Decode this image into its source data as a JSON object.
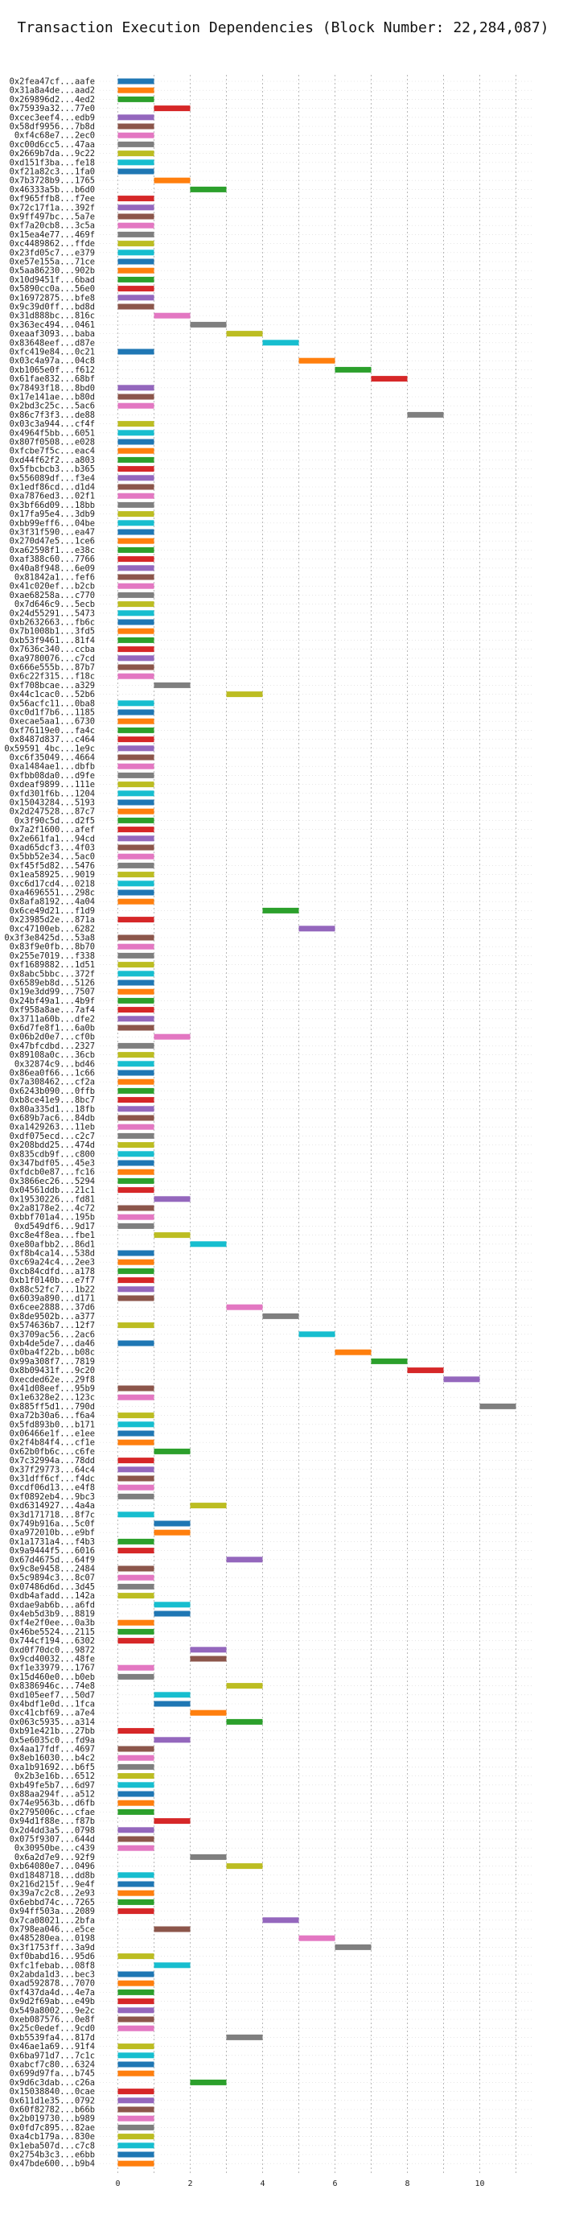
{
  "chart_data": {
    "type": "bar",
    "title": "Transaction Execution Dependencies (Block Number: 22,284,087)",
    "xlabel": "",
    "ylabel": "",
    "xlim": [
      -0.5,
      11.5
    ],
    "xticks": [
      0,
      2,
      4,
      6,
      8,
      10
    ],
    "grid": true,
    "colors": [
      "#1f77b4",
      "#ff7f0e",
      "#2ca02c",
      "#d62728",
      "#9467bd",
      "#8c564b",
      "#e377c2",
      "#7f7f7f",
      "#bcbd22",
      "#17becf"
    ],
    "transactions": [
      "0x2fea47cf...aafe",
      "0x31a8a4de...aad2",
      "0x269896d2...4ed2",
      "0x75939a32...77e0",
      "0xcec3eef4...edb9",
      "0x58df9956...7b8d",
      "0xf4c68e7...2ec0",
      "0xc00d6cc5...47aa",
      "0x2669b7da...9c22",
      "0xd151f3ba...fe18",
      "0xf21a82c3...1fa0",
      "0x7b3728b9...1765",
      "0x46333a5b...b6d0",
      "0xf965ffb8...f7ee",
      "0x72c17f1a...392f",
      "0x9ff497bc...5a7e",
      "0xf7a20cb8...3c5a",
      "0x15ea4e77...469f",
      "0xc4489862...ffde",
      "0x23fd05c7...e379",
      "0xe57e155a...71ce",
      "0x5aa86230...902b",
      "0x10d9451f...6bad",
      "0x5890cc0a...56e0",
      "0x16972875...bfe8",
      "0x9c39d0ff...bd8d",
      "0x31d888bc...816c",
      "0x363ec494...0461",
      "0xeaaf3093...baba",
      "0x83648eef...d87e",
      "0xfc419e84...0c21",
      "0x03c4a97a...04c8",
      "0xb1065e0f...f612",
      "0x61fae832...68bf",
      "0x78493f18...8bd0",
      "0x17e141ae...b80d",
      "0x2bd3c25c...5ac6",
      "0x86c7f3f3...de88",
      "0x03c3a944...cf4f",
      "0x4964f5bb...6051",
      "0x807f0508...e028",
      "0xfcbe7f5c...eac4",
      "0xd44f62f2...a803",
      "0x5fbcbcb3...b365",
      "0x556089df...f3e4",
      "0x1edf86cd...d1d4",
      "0xa7876ed3...02f1",
      "0x3bf66d09...18bb",
      "0x17fa95e4...3db9",
      "0xbb99eff6...04be",
      "0x3f31f590...ea47",
      "0x270d47e5...1ce6",
      "0xa62598f1...e38c",
      "0xaf388c60...7766",
      "0x40a8f948...6e09",
      "0x81842a1...fef6",
      "0x41c020ef...b2cb",
      "0xae68258a...c770",
      "0x7d646c9...5ecb",
      "0x24d55291...5473",
      "0xb2632663...fb6c",
      "0x7b1008b1...3fd5",
      "0xb53f9461...81f4",
      "0x7636c340...ccba",
      "0xa9780076...c7cd",
      "0x666e555b...87b7",
      "0x6c22f315...f18c",
      "0xf708bcae...a329",
      "0x44c1cac0...52b6",
      "0x56acfc11...0ba8",
      "0xc0d1f7b6...1185",
      "0xecae5aa1...6730",
      "0xf76119e0...fa4c",
      "0x8487d837...c464",
      "0x59591 4bc...1e9c",
      "0xc6f35049...4664",
      "0xa1484ae1...dbfb",
      "0xfbb08da0...d9fe",
      "0xdeaf9899...111e",
      "0xfd301f6b...1204",
      "0x15043284...5193",
      "0x2d247528...87c7",
      "0x3f90c5d...d2f5",
      "0x7a2f1600...afef",
      "0x2e661fa1...94cd",
      "0xad65dcf3...4f03",
      "0x5bb52e34...5ac0",
      "0xf45f5d82...5476",
      "0x1ea58925...9019",
      "0xc6d17cd4...0218",
      "0xa4696551...298c",
      "0x8afa8192...4a04",
      "0x6ce49d21...f1d9",
      "0x23985d2e...871a",
      "0xc47100eb...6282",
      "0x3f3e8425d...53a8",
      "0x83f9e0fb...8b70",
      "0x255e7019...f338",
      "0xf1689882...1d51",
      "0x8abc5bbc...372f",
      "0x6589eb8d...5126",
      "0x19e3dd99...7507",
      "0x24bf49a1...4b9f",
      "0xf958a8ae...7af4",
      "0x3711a60b...dfe2",
      "0x6d7fe8f1...6a0b",
      "0x06b2d0e7...cf0b",
      "0x47bfcdbd...2327",
      "0x89108a0c...36cb",
      "0x32874c9...bd46",
      "0x86ea0f66...1c66",
      "0x7a308462...cf2a",
      "0x6243b090...0ffb",
      "0xb8ce41e9...8bc7",
      "0x80a335d1...18fb",
      "0x689b7ac6...84db",
      "0xa1429263...11eb",
      "0xdf075ecd...c2c7",
      "0x208bdd25...474d",
      "0x835cdb9f...c800",
      "0x347bdf05...45e3",
      "0xfdcb0e87...fc16",
      "0x3866ec26...5294",
      "0x04561ddb...21c1",
      "0x19530226...fd81",
      "0x2a8178e2...4c72",
      "0xbbf701a4...195b",
      "0xd549df6...9d17",
      "0xc8e4f8ea...fbe1",
      "0xe80afbb2...86d1",
      "0xf8b4ca14...538d",
      "0xc69a24c4...2ee3",
      "0xcb84cdfd...a178",
      "0xb1f0140b...e7f7",
      "0x88c52fc7...1b22",
      "0x6039a890...d171",
      "0x6cee2888...37d6",
      "0x8de9502b...a377",
      "0x574636b7...12f7",
      "0x3709ac56...2ac6",
      "0xb4de5de7...da46",
      "0x0ba4f22b...b08c",
      "0x99a308f7...7819",
      "0x8b09431f...9c20",
      "0xecded62e...29f8",
      "0x41d08eef...95b9",
      "0x1e6328e2...123c",
      "0x885ff5d1...790d",
      "0xa72b30a6...f6a4",
      "0x5fd893b0...b171",
      "0x06466e1f...e1ee",
      "0x2f4b84f4...cf1e",
      "0x62b0fb6c...c6fe",
      "0x7c32994a...78dd",
      "0x37f29773...64c4",
      "0x31dff6cf...f4dc",
      "0xcdf06d13...e4f8",
      "0xf0892eb4...9bc3",
      "0xd6314927...4a4a",
      "0x3d171718...8f7c",
      "0x749b916a...5c0f",
      "0xa972010b...e9bf",
      "0x1a1731a4...f4b3",
      "0x9a9444f5...6016",
      "0x67d4675d...64f9",
      "0x9c8e9458...2484",
      "0x5c9894c3...8c07",
      "0x07486d6d...3d45",
      "0xdb4afadd...142a",
      "0xdae9ab6b...a6fd",
      "0x4eb5d3b9...8819",
      "0xf4e2f0ee...0a3b",
      "0x46be5524...2115",
      "0x744cf194...6302",
      "0xd0f70dc0...9872",
      "0x9cd40032...48fe",
      "0xf1e33979...1767",
      "0x15d460e0...b0eb",
      "0x8386946c...74e8",
      "0xd105eef7...50d7",
      "0x4bdf1e0d...1fca",
      "0xc41cbf69...a7e4",
      "0x063c5935...a314",
      "0xb91e421b...27bb",
      "0x5e6035c0...fd9a",
      "0x4aa17fdf...4697",
      "0x8eb16030...b4c2",
      "0xa1b91692...b6f5",
      "0x2b3e16b...6512",
      "0xb49fe5b7...6d97",
      "0x88aa294f...a512",
      "0x74e9563b...d6fb",
      "0x2795006c...cfae",
      "0x94d1f88e...f87b",
      "0x2d4dd3a5...0798",
      "0x075f9307...644d",
      "0x30950be...c439",
      "0x6a2d7e9...92f9",
      "0xb64080e7...0496",
      "0xd1848718...dd8b",
      "0x216d215f...9e4f",
      "0x39a7c2c8...2e93",
      "0x6ebbd74c...7265",
      "0x94ff503a...2089",
      "0x7ca08021...2bfa",
      "0x798ea046...e5ce",
      "0x485280ea...0198",
      "0x3f1753ff...3a9d",
      "0xf0babd16...95d6",
      "0xfc1febab...08f8",
      "0x2abda1d3...bec3",
      "0xad592878...7070",
      "0xf437da4d...4e7a",
      "0x9d2f69ab...e49b",
      "0x549a8002...9e2c",
      "0xeb087576...0e8f",
      "0x25c0edef...9cd0",
      "0xb5539fa4...817d",
      "0x46ae1a69...91f4",
      "0x6ba971d7...7c1c",
      "0xabcf7c80...6324",
      "0x699d97fa...b745",
      "0x9d6c3dab...c26a",
      "0x15038840...0cae",
      "0x611d1e35...0792",
      "0x60f82782...b66b",
      "0x2b019730...b989",
      "0x0fd7c895...82ae",
      "0xa4cb179a...830e",
      "0x1eba507d...c7c8",
      "0x2754b3c3...e6bb",
      "0x47bde600...b9b4"
    ],
    "start": [
      0,
      0,
      0,
      1,
      0,
      0,
      0,
      0,
      0,
      0,
      0,
      1,
      2,
      0,
      0,
      0,
      0,
      0,
      0,
      0,
      0,
      0,
      0,
      0,
      0,
      0,
      1,
      2,
      3,
      4,
      0,
      5,
      6,
      7,
      0,
      0,
      0,
      8,
      0,
      0,
      0,
      0,
      0,
      0,
      0,
      0,
      0,
      0,
      0,
      0,
      0,
      0,
      0,
      0,
      0,
      0,
      0,
      0,
      0,
      0,
      0,
      0,
      0,
      0,
      0,
      0,
      0,
      1,
      3,
      0,
      0,
      0,
      0,
      0,
      0,
      0,
      0,
      0,
      0,
      0,
      0,
      0,
      0,
      0,
      0,
      0,
      0,
      0,
      0,
      0,
      0,
      0,
      4,
      0,
      5,
      0,
      0,
      0,
      0,
      0,
      0,
      0,
      0,
      0,
      0,
      0,
      1,
      0,
      0,
      0,
      0,
      0,
      0,
      0,
      0,
      0,
      0,
      0,
      0,
      0,
      0,
      0,
      0,
      0,
      1,
      0,
      0,
      0,
      1,
      2,
      0,
      0,
      0,
      0,
      0,
      0,
      3,
      4,
      0,
      5,
      0,
      6,
      7,
      8,
      9,
      0,
      0,
      10,
      0,
      0,
      0,
      0,
      1,
      0,
      0,
      0,
      0,
      0,
      2,
      0,
      1,
      1,
      0,
      0,
      3,
      0,
      0,
      0,
      0,
      1,
      1,
      0,
      0,
      0,
      2,
      2,
      0,
      0,
      3,
      1,
      1,
      2,
      3,
      0,
      1,
      0,
      0,
      0,
      0,
      0,
      0,
      0,
      0,
      1,
      0,
      0,
      0,
      2,
      3,
      0,
      0,
      0,
      0,
      0,
      4,
      1,
      5,
      6,
      0,
      1,
      0,
      0,
      0,
      0,
      0,
      0,
      0,
      3,
      0,
      0,
      0,
      0,
      2,
      0
    ],
    "duration": [
      1,
      1,
      1,
      1,
      1,
      1,
      1,
      1,
      1,
      1,
      1,
      1,
      1,
      1,
      1,
      1,
      1,
      1,
      1,
      1,
      1,
      1,
      1,
      1,
      1,
      1,
      1,
      1,
      1,
      1,
      1,
      1,
      1,
      1,
      1,
      1,
      1,
      1,
      1,
      1,
      1,
      1,
      1,
      1,
      1,
      1,
      1,
      1,
      1,
      1,
      1,
      1,
      1,
      1,
      1,
      1,
      1,
      1,
      1,
      1,
      1,
      1,
      1,
      1,
      1,
      1,
      1,
      1,
      1,
      1,
      1,
      1,
      1,
      1,
      1,
      1,
      1,
      1,
      1,
      1,
      1,
      1,
      1,
      1,
      1,
      1,
      1,
      1,
      1,
      1,
      1,
      1,
      1,
      1,
      1,
      1,
      1,
      1,
      1,
      1,
      1,
      1,
      1,
      1,
      1,
      1,
      1,
      1,
      1,
      1,
      1,
      1,
      1,
      1,
      1,
      1,
      1,
      1,
      1,
      1,
      1,
      1,
      1,
      1,
      1,
      1,
      1,
      1,
      1,
      1,
      1,
      1,
      1,
      1,
      1,
      1,
      1,
      1,
      1,
      1,
      1,
      1,
      1,
      1,
      1,
      1,
      1,
      1,
      1,
      1,
      1,
      1,
      1,
      1,
      1,
      1,
      1,
      1,
      1,
      1,
      1,
      1,
      1,
      1,
      1,
      1,
      1,
      1,
      1,
      1,
      1,
      1,
      1,
      1,
      1,
      1,
      1,
      1,
      1,
      1,
      1,
      1,
      1,
      1,
      1,
      1,
      1,
      1,
      1,
      1,
      1,
      1,
      1,
      1,
      1,
      1,
      1,
      1,
      1,
      1,
      1,
      1,
      1,
      1,
      1,
      1,
      1,
      1,
      1,
      1,
      1,
      1,
      1,
      1,
      1,
      1,
      1,
      1,
      1,
      1,
      1,
      1,
      1,
      1
    ]
  }
}
